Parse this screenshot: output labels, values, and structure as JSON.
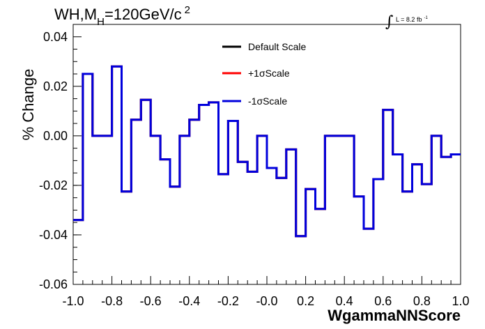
{
  "chart_data": {
    "type": "line",
    "title_main": "WH,M",
    "title_sub": "H",
    "title_value": "=120GeV/c",
    "title_sup": "2",
    "lumi_symbol": "∫",
    "lumi_text": "L = 8.2 fb",
    "lumi_sup": "-1",
    "xlabel": "WgammaNNScore",
    "ylabel": "% Change",
    "xlim": [
      -1.0,
      1.0
    ],
    "ylim": [
      -0.06,
      0.045
    ],
    "x_ticks": [
      "-1.0",
      "-0.8",
      "-0.6",
      "-0.4",
      "-0.2",
      "-0.0",
      "0.2",
      "0.4",
      "0.6",
      "0.8",
      "1.0"
    ],
    "x_tick_values": [
      -1.0,
      -0.8,
      -0.6,
      -0.4,
      -0.2,
      0.0,
      0.2,
      0.4,
      0.6,
      0.8,
      1.0
    ],
    "y_ticks": [
      "0.04",
      "0.02",
      "0.00",
      "-0.02",
      "-0.04",
      "-0.06"
    ],
    "y_tick_values": [
      0.04,
      0.02,
      0.0,
      -0.02,
      -0.04,
      -0.06
    ],
    "legend_position": "top-center",
    "bin_edges": [
      -1.0,
      -0.95,
      -0.9,
      -0.85,
      -0.8,
      -0.75,
      -0.7,
      -0.65,
      -0.6,
      -0.55,
      -0.5,
      -0.45,
      -0.4,
      -0.35,
      -0.3,
      -0.25,
      -0.2,
      -0.15,
      -0.1,
      -0.05,
      0.0,
      0.05,
      0.1,
      0.15,
      0.2,
      0.25,
      0.3,
      0.35,
      0.4,
      0.45,
      0.5,
      0.55,
      0.6,
      0.65,
      0.7,
      0.75,
      0.8,
      0.85,
      0.9,
      0.95,
      1.0
    ],
    "series": [
      {
        "name": "Default Scale",
        "color": "#000000",
        "values": [
          -0.034,
          0.025,
          0.0,
          0.0,
          0.028,
          -0.0225,
          0.0065,
          0.0145,
          0.0,
          -0.0095,
          -0.0205,
          0.0,
          0.0065,
          0.0125,
          0.0135,
          -0.0155,
          0.006,
          -0.0105,
          -0.0145,
          0.0,
          -0.013,
          -0.017,
          -0.0055,
          -0.0405,
          -0.0215,
          -0.0295,
          0.0,
          0.0,
          0.0,
          -0.0245,
          -0.0375,
          -0.0175,
          0.0105,
          -0.0075,
          -0.0225,
          -0.0115,
          -0.0195,
          0.0,
          -0.0085,
          -0.0075
        ]
      },
      {
        "name": "+1σScale",
        "color": "#ff0000",
        "values": [
          -0.034,
          0.025,
          0.0,
          0.0,
          0.028,
          -0.0225,
          0.0065,
          0.0145,
          0.0,
          -0.0095,
          -0.0205,
          0.0,
          0.0065,
          0.0125,
          0.0135,
          -0.0155,
          0.006,
          -0.0105,
          -0.0145,
          0.0,
          -0.013,
          -0.017,
          -0.0055,
          -0.0405,
          -0.0215,
          -0.0295,
          0.0,
          0.0,
          0.0,
          -0.0245,
          -0.0375,
          -0.0175,
          0.0105,
          -0.0075,
          -0.0225,
          -0.0115,
          -0.0195,
          0.0,
          -0.0085,
          -0.0075
        ]
      },
      {
        "name": "-1σScale",
        "color": "#0000dd",
        "values": [
          -0.034,
          0.025,
          0.0,
          0.0,
          0.028,
          -0.0225,
          0.0065,
          0.0145,
          0.0,
          -0.0095,
          -0.0205,
          0.0,
          0.0065,
          0.0125,
          0.0135,
          -0.0155,
          0.006,
          -0.0105,
          -0.0145,
          0.0,
          -0.013,
          -0.017,
          -0.0055,
          -0.0405,
          -0.0215,
          -0.0295,
          0.0,
          0.0,
          0.0,
          -0.0245,
          -0.0375,
          -0.0175,
          0.0105,
          -0.0075,
          -0.0225,
          -0.0115,
          -0.0195,
          0.0,
          -0.0085,
          -0.0075
        ]
      }
    ]
  }
}
